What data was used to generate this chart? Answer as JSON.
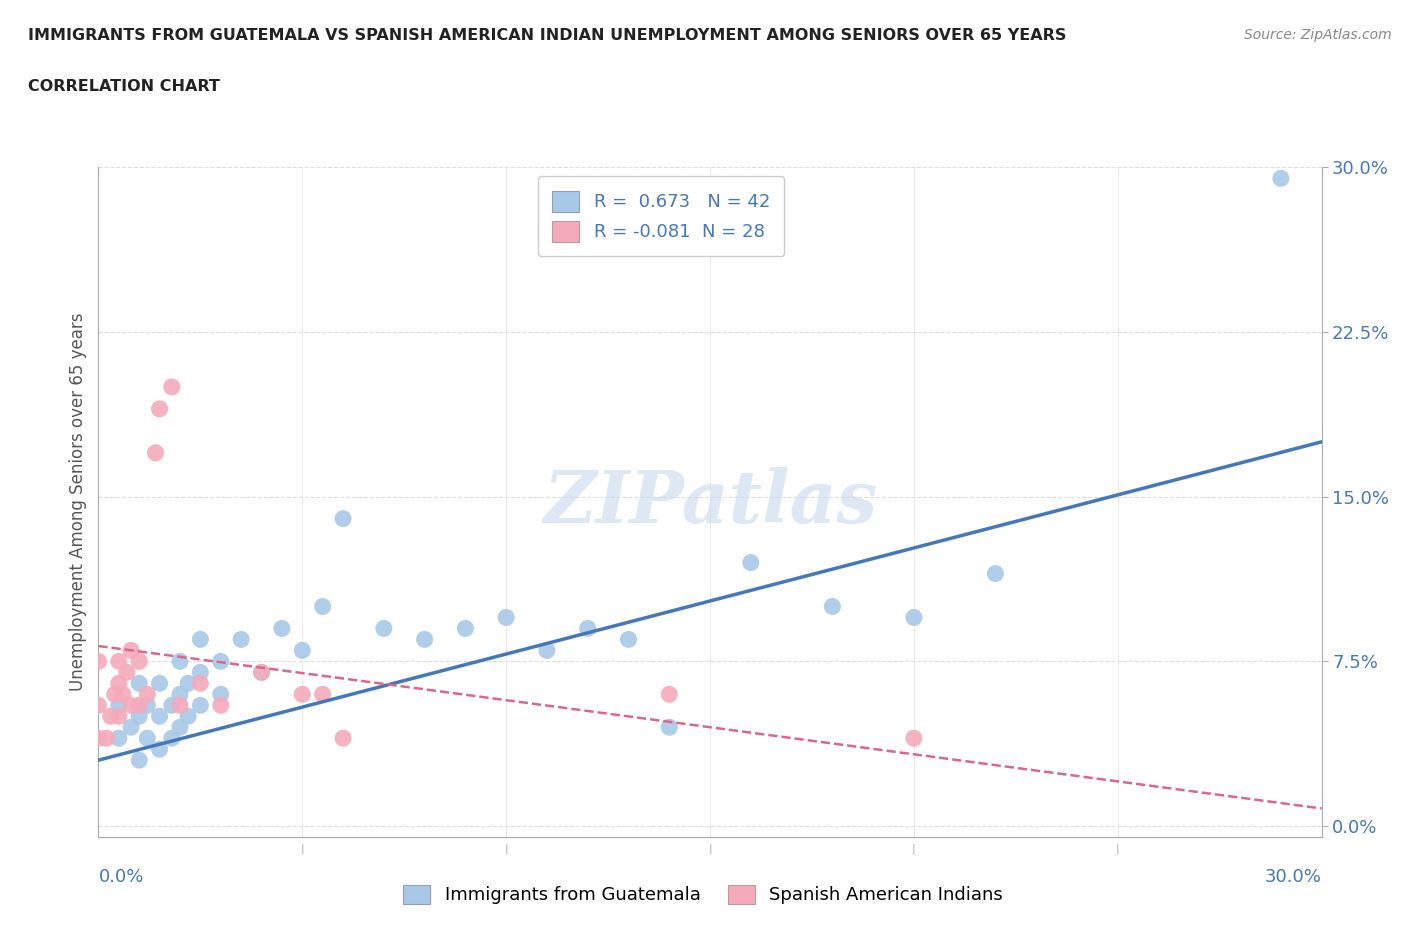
{
  "title_line1": "IMMIGRANTS FROM GUATEMALA VS SPANISH AMERICAN INDIAN UNEMPLOYMENT AMONG SENIORS OVER 65 YEARS",
  "title_line2": "CORRELATION CHART",
  "source": "Source: ZipAtlas.com",
  "ylabel": "Unemployment Among Seniors over 65 years",
  "xlim": [
    0.0,
    0.3
  ],
  "ylim": [
    -0.005,
    0.3
  ],
  "ytick_vals": [
    0.0,
    0.075,
    0.15,
    0.225,
    0.3
  ],
  "ytick_labels": [
    "0.0%",
    "7.5%",
    "15.0%",
    "22.5%",
    "30.0%"
  ],
  "xtick_vals": [
    0.0,
    0.3
  ],
  "xtick_labels": [
    "0.0%",
    "30.0%"
  ],
  "r_blue": 0.673,
  "n_blue": 42,
  "r_pink": -0.081,
  "n_pink": 28,
  "blue_scatter_color": "#A8C8E8",
  "pink_scatter_color": "#F4AABB",
  "blue_line_color": "#4477BB",
  "pink_line_color": "#DD6688",
  "legend_text_color": "#4477BB",
  "axis_label_color": "#4477BB",
  "ylabel_color": "#555555",
  "title_color": "#222222",
  "source_color": "#888888",
  "grid_color": "#DDDDDD",
  "watermark": "ZIPatlas",
  "watermark_color": "#C8D8EE",
  "background_color": "#FFFFFF",
  "blue_scatter_x": [
    0.005,
    0.005,
    0.008,
    0.01,
    0.01,
    0.01,
    0.012,
    0.012,
    0.015,
    0.015,
    0.015,
    0.018,
    0.018,
    0.02,
    0.02,
    0.02,
    0.022,
    0.022,
    0.025,
    0.025,
    0.025,
    0.03,
    0.03,
    0.035,
    0.04,
    0.045,
    0.05,
    0.055,
    0.06,
    0.07,
    0.08,
    0.09,
    0.1,
    0.11,
    0.12,
    0.13,
    0.14,
    0.16,
    0.18,
    0.2,
    0.22,
    0.29
  ],
  "blue_scatter_y": [
    0.04,
    0.055,
    0.045,
    0.03,
    0.05,
    0.065,
    0.04,
    0.055,
    0.035,
    0.05,
    0.065,
    0.04,
    0.055,
    0.045,
    0.06,
    0.075,
    0.05,
    0.065,
    0.055,
    0.07,
    0.085,
    0.06,
    0.075,
    0.085,
    0.07,
    0.09,
    0.08,
    0.1,
    0.14,
    0.09,
    0.085,
    0.09,
    0.095,
    0.08,
    0.09,
    0.085,
    0.045,
    0.12,
    0.1,
    0.095,
    0.115,
    0.295
  ],
  "pink_scatter_x": [
    0.0,
    0.0,
    0.0,
    0.002,
    0.003,
    0.004,
    0.005,
    0.005,
    0.005,
    0.006,
    0.007,
    0.008,
    0.008,
    0.01,
    0.01,
    0.012,
    0.014,
    0.015,
    0.018,
    0.02,
    0.025,
    0.03,
    0.04,
    0.05,
    0.055,
    0.06,
    0.14,
    0.2
  ],
  "pink_scatter_y": [
    0.04,
    0.055,
    0.075,
    0.04,
    0.05,
    0.06,
    0.05,
    0.065,
    0.075,
    0.06,
    0.07,
    0.055,
    0.08,
    0.055,
    0.075,
    0.06,
    0.17,
    0.19,
    0.2,
    0.055,
    0.065,
    0.055,
    0.07,
    0.06,
    0.06,
    0.04,
    0.06,
    0.04
  ],
  "blue_line_x0": 0.0,
  "blue_line_y0": 0.03,
  "blue_line_x1": 0.3,
  "blue_line_y1": 0.175,
  "pink_line_x0": 0.0,
  "pink_line_y0": 0.082,
  "pink_line_x1": 0.3,
  "pink_line_y1": 0.008
}
